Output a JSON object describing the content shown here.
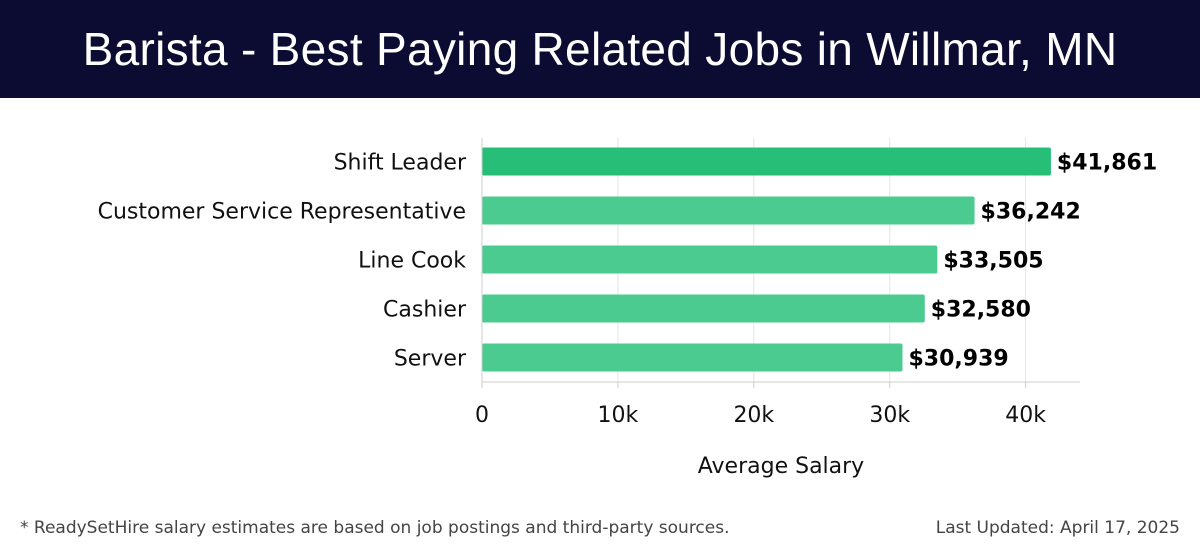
{
  "header": {
    "title": "Barista - Best Paying Related Jobs in Willmar, MN"
  },
  "chart_data": {
    "type": "bar",
    "orientation": "horizontal",
    "categories": [
      "Shift Leader",
      "Customer Service Representative",
      "Line Cook",
      "Cashier",
      "Server"
    ],
    "values": [
      41861,
      36242,
      33505,
      32580,
      30939
    ],
    "value_labels": [
      "$41,861",
      "$36,242",
      "$33,505",
      "$32,580",
      "$30,939"
    ],
    "xlabel": "Average Salary",
    "xlim": [
      0,
      44000
    ],
    "xticks": [
      0,
      10000,
      20000,
      30000,
      40000
    ],
    "xtick_labels": [
      "0",
      "10k",
      "20k",
      "30k",
      "40k"
    ],
    "grid": "vertical",
    "colors": {
      "top_bar": "#27be78",
      "bars": "#4ccb90",
      "header_bg": "#0c0c32"
    }
  },
  "footer": {
    "note": "* ReadySetHire salary estimates are based on job postings and third-party sources.",
    "updated": "Last Updated: April 17, 2025"
  }
}
